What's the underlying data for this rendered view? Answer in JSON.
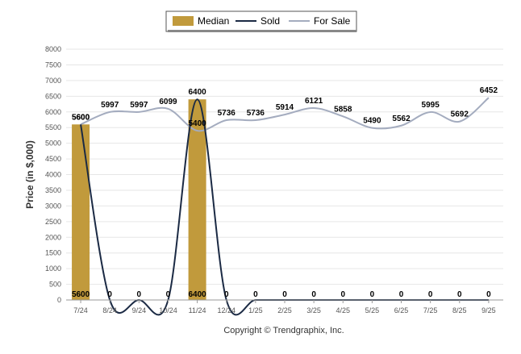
{
  "chart_data": {
    "type": "bar",
    "categories": [
      "7/24",
      "8/24",
      "9/24",
      "10/24",
      "11/24",
      "12/24",
      "1/25",
      "2/25",
      "3/25",
      "4/25",
      "5/25",
      "6/25",
      "7/25",
      "8/25",
      "9/25"
    ],
    "series": [
      {
        "name": "Median",
        "kind": "bar",
        "color": "#C19A3C",
        "values": [
          5600,
          0,
          0,
          0,
          6400,
          0,
          0,
          0,
          0,
          0,
          0,
          0,
          0,
          0,
          0
        ]
      },
      {
        "name": "Sold",
        "kind": "line",
        "color": "#1B2A44",
        "values": [
          5600,
          0,
          0,
          0,
          6400,
          0,
          0,
          0,
          0,
          0,
          0,
          0,
          0,
          0,
          0
        ]
      },
      {
        "name": "For Sale",
        "kind": "line",
        "color": "#A4ACBF",
        "values": [
          5600,
          5997,
          5997,
          6099,
          5400,
          5736,
          5736,
          5914,
          6121,
          5858,
          5490,
          5562,
          5995,
          5692,
          6452
        ]
      }
    ],
    "xlabel": "",
    "ylabel": "Price (in $,000)",
    "ylim": [
      0,
      8000
    ],
    "yticks": [
      0,
      500,
      1000,
      1500,
      2000,
      2500,
      3000,
      3500,
      4000,
      4500,
      5000,
      5500,
      6000,
      6500,
      7000,
      7500,
      8000
    ],
    "grid": true,
    "legend_position": "top-center",
    "copyright": "Copyright © Trendgraphix, Inc."
  }
}
